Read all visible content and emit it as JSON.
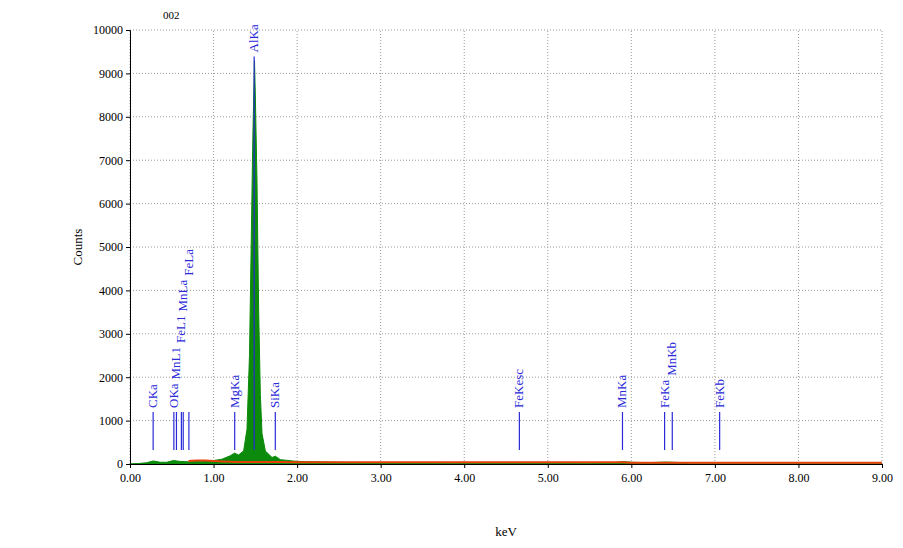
{
  "chart_data": {
    "type": "area",
    "title": "002",
    "x_label": "keV",
    "y_label": "Counts",
    "x": [
      0,
      0.1,
      0.2,
      0.28,
      0.36,
      0.44,
      0.52,
      0.6,
      0.7,
      0.8,
      0.9,
      1.0,
      1.1,
      1.2,
      1.25,
      1.3,
      1.36,
      1.4,
      1.43,
      1.45,
      1.47,
      1.49,
      1.5,
      1.52,
      1.54,
      1.56,
      1.58,
      1.62,
      1.7,
      1.74,
      1.8,
      2.0,
      2.5,
      3.0,
      3.5,
      4.0,
      4.5,
      5.0,
      5.5,
      5.8,
      5.9,
      6.0,
      6.2,
      6.4,
      6.5,
      6.6,
      6.7,
      7.0,
      8.0,
      9.0
    ],
    "series": [
      {
        "type": "area",
        "color": "#0b8a0b",
        "values": [
          0,
          10,
          30,
          70,
          40,
          40,
          80,
          60,
          50,
          60,
          70,
          80,
          110,
          190,
          250,
          210,
          300,
          800,
          2500,
          5000,
          7500,
          9300,
          8500,
          6500,
          3500,
          1600,
          700,
          300,
          150,
          180,
          100,
          60,
          40,
          30,
          25,
          20,
          15,
          15,
          20,
          35,
          55,
          40,
          30,
          45,
          40,
          30,
          0,
          0,
          0,
          0
        ]
      },
      {
        "type": "line",
        "color": "#e8400c",
        "values": [
          null,
          null,
          null,
          null,
          null,
          null,
          null,
          null,
          70,
          80,
          80,
          70,
          60,
          50,
          45,
          45,
          45,
          45,
          45,
          45,
          45,
          45,
          45,
          45,
          45,
          45,
          45,
          45,
          45,
          45,
          45,
          40,
          40,
          40,
          40,
          40,
          40,
          40,
          40,
          40,
          40,
          30,
          30,
          30,
          30,
          30,
          30,
          30,
          30,
          30
        ]
      }
    ],
    "annotations": [
      {
        "text": "CKa",
        "x": 0.277
      },
      {
        "text": "OKa",
        "x": 0.525
      },
      {
        "text": "MnL1",
        "x": 0.556
      },
      {
        "text": "FeL1",
        "x": 0.615
      },
      {
        "text": "MnLa",
        "x": 0.637
      },
      {
        "text": "FeLa",
        "x": 0.705
      },
      {
        "text": "MgKa",
        "x": 1.253
      },
      {
        "text": "AlKa",
        "x": 1.486
      },
      {
        "text": "SiKa",
        "x": 1.739
      },
      {
        "text": "FeKesc",
        "x": 4.66
      },
      {
        "text": "MnKa",
        "x": 5.894
      },
      {
        "text": "FeKa",
        "x": 6.398
      },
      {
        "text": "MnKb",
        "x": 6.49
      },
      {
        "text": "FeKb",
        "x": 7.057
      }
    ],
    "xlim": [
      0,
      9
    ],
    "xticks": [
      {
        "value": 0,
        "label": "0.00"
      },
      {
        "value": 1,
        "label": "1.00"
      },
      {
        "value": 2,
        "label": "2.00"
      },
      {
        "value": 3,
        "label": "3.00"
      },
      {
        "value": 4,
        "label": "4.00"
      },
      {
        "value": 5,
        "label": "5.00"
      },
      {
        "value": 6,
        "label": "6.00"
      },
      {
        "value": 7,
        "label": "7.00"
      },
      {
        "value": 8,
        "label": "8.00"
      },
      {
        "value": 9,
        "label": "9.00"
      }
    ],
    "ylim": [
      0,
      10000
    ],
    "yticks": [
      0,
      1000,
      2000,
      3000,
      4000,
      5000,
      6000,
      7000,
      8000,
      9000,
      10000
    ],
    "grid": true
  }
}
